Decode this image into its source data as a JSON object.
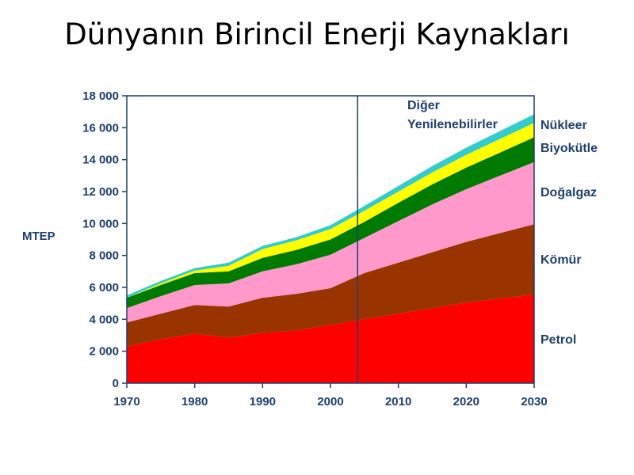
{
  "title": "Dünyanın Birincil Enerji Kaynakları",
  "chart_data": {
    "type": "area",
    "stacked": true,
    "ylabel": "MTEP",
    "xlim": [
      1970,
      2030
    ],
    "ylim": [
      0,
      18000
    ],
    "xticks": [
      1970,
      1980,
      1990,
      2000,
      2010,
      2020,
      2030
    ],
    "yticks": [
      0,
      2000,
      4000,
      6000,
      8000,
      10000,
      12000,
      14000,
      16000,
      18000
    ],
    "ytick_labels": [
      "0",
      "2 000",
      "4 000",
      "6 000",
      "8 000",
      "10 000",
      "12 000",
      "14 000",
      "16 000",
      "18 000"
    ],
    "divider_x": 2004,
    "x": [
      1970,
      1975,
      1980,
      1985,
      1990,
      1995,
      2000,
      2005,
      2010,
      2015,
      2020,
      2025,
      2030
    ],
    "series": [
      {
        "name": "Petrol",
        "color": "#ff0000",
        "values": [
          2300,
          2750,
          3100,
          2850,
          3150,
          3300,
          3650,
          4000,
          4350,
          4700,
          5050,
          5300,
          5550
        ]
      },
      {
        "name": "Kömür",
        "color": "#993300",
        "values": [
          1500,
          1600,
          1800,
          1950,
          2200,
          2300,
          2300,
          2900,
          3200,
          3500,
          3800,
          4100,
          4400
        ]
      },
      {
        "name": "Doğalgaz",
        "color": "#ff99cc",
        "values": [
          900,
          1100,
          1250,
          1450,
          1650,
          1850,
          2100,
          2200,
          2600,
          3000,
          3300,
          3600,
          3900
        ]
      },
      {
        "name": "Biyokütle",
        "color": "#007a00",
        "values": [
          650,
          700,
          750,
          750,
          850,
          900,
          950,
          1000,
          1150,
          1250,
          1350,
          1450,
          1550
        ]
      },
      {
        "name": "Nükleer",
        "color": "#ffff00",
        "values": [
          0,
          100,
          150,
          350,
          550,
          600,
          650,
          700,
          700,
          750,
          800,
          850,
          900
        ]
      },
      {
        "name": "Diğer Yenilenebilirler",
        "color": "#33cccc",
        "values": [
          150,
          150,
          150,
          200,
          200,
          200,
          250,
          300,
          350,
          400,
          450,
          500,
          550
        ]
      }
    ],
    "legend": [
      {
        "name": "Diğer",
        "series": 5
      },
      {
        "name": "Yenilenebilirler",
        "series": 5
      },
      {
        "name": "Nükleer",
        "series": 4
      },
      {
        "name": "Biyokütle",
        "series": 3
      },
      {
        "name": "Doğalgaz",
        "series": 2
      },
      {
        "name": "Kömür",
        "series": 1
      },
      {
        "name": "Petrol",
        "series": 0
      }
    ]
  }
}
